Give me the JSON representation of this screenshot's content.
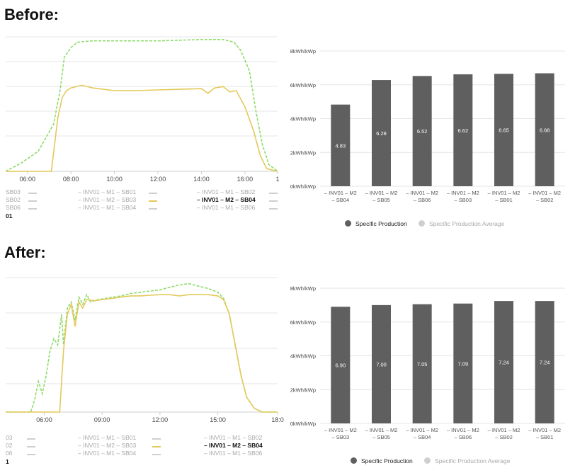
{
  "panels": [
    {
      "heading": "Before:",
      "line_chart": {
        "x_ticks": [
          "06:00",
          "08:00",
          "10:00",
          "12:00",
          "14:00",
          "16:00",
          "1"
        ],
        "series_green": [
          [
            5.0,
            0
          ],
          [
            5.7,
            6
          ],
          [
            6.5,
            15
          ],
          [
            7.2,
            35
          ],
          [
            7.5,
            60
          ],
          [
            7.7,
            85
          ],
          [
            8.0,
            92
          ],
          [
            8.3,
            96
          ],
          [
            9.0,
            97
          ],
          [
            10.0,
            97
          ],
          [
            11.0,
            97
          ],
          [
            12.0,
            97
          ],
          [
            13.0,
            97.5
          ],
          [
            14.0,
            98
          ],
          [
            15.0,
            98
          ],
          [
            15.5,
            96
          ],
          [
            15.8,
            90
          ],
          [
            16.2,
            75
          ],
          [
            16.5,
            45
          ],
          [
            16.8,
            20
          ],
          [
            17.1,
            5
          ],
          [
            17.5,
            0
          ]
        ],
        "series_yellow": [
          [
            5.0,
            0
          ],
          [
            7.1,
            0
          ],
          [
            7.4,
            40
          ],
          [
            7.6,
            55
          ],
          [
            7.8,
            60
          ],
          [
            8.0,
            62
          ],
          [
            8.5,
            64
          ],
          [
            9.0,
            62
          ],
          [
            10.0,
            60
          ],
          [
            11.0,
            60
          ],
          [
            12.0,
            60.5
          ],
          [
            13.0,
            61
          ],
          [
            14.0,
            61.5
          ],
          [
            14.3,
            58
          ],
          [
            14.6,
            62
          ],
          [
            15.0,
            63
          ],
          [
            15.3,
            59
          ],
          [
            15.6,
            60
          ],
          [
            16.0,
            48
          ],
          [
            16.4,
            30
          ],
          [
            16.7,
            12
          ],
          [
            17.0,
            2
          ],
          [
            17.5,
            0
          ]
        ],
        "legend": [
          {
            "col1": "SB03",
            "col2": "– INV01 – M1 – SB01",
            "col3": "– INV01 – M1 – SB02"
          },
          {
            "col1": "SB02",
            "col2": "– INV01 – M2 – SB03",
            "col3": "– INV01 – M2 – SB04"
          },
          {
            "col1": "SB06",
            "col2": "– INV01 – M1 – SB04",
            "col3": "– INV01 – M1 – SB06"
          }
        ],
        "legend_extra": "01"
      },
      "bar_chart": {
        "y_ticks": [
          "0kWh/kWp",
          "2kWh/kWp",
          "4kWh/kWp",
          "6kWh/kWp",
          "8kWh/kWp"
        ],
        "categories": [
          [
            "– INV01 – M2",
            "– SB04"
          ],
          [
            "– INV01 – M2",
            "– SB05"
          ],
          [
            "– INV01 – M2",
            "– SB06"
          ],
          [
            "– INV01 – M2",
            "– SB03"
          ],
          [
            "– INV01 – M2",
            "– SB01"
          ],
          [
            "– INV01 – M2",
            "– SB02"
          ]
        ],
        "values": [
          4.83,
          6.28,
          6.52,
          6.62,
          6.65,
          6.68
        ],
        "labels": [
          "4.83",
          "6.28",
          "6.52",
          "6.62",
          "6.65",
          "6.68"
        ],
        "ylim": [
          0,
          8
        ],
        "legend_main": "Specific Production",
        "legend_avg": "Specific Production Average"
      }
    },
    {
      "heading": "After:",
      "line_chart": {
        "x_ticks": [
          "06:00",
          "09:00",
          "12:00",
          "15:00",
          "18:0"
        ],
        "series_green": [
          [
            4.0,
            0
          ],
          [
            5.3,
            0
          ],
          [
            5.5,
            10
          ],
          [
            5.7,
            25
          ],
          [
            5.9,
            15
          ],
          [
            6.1,
            30
          ],
          [
            6.3,
            50
          ],
          [
            6.5,
            60
          ],
          [
            6.7,
            55
          ],
          [
            6.9,
            80
          ],
          [
            7.0,
            55
          ],
          [
            7.2,
            85
          ],
          [
            7.4,
            90
          ],
          [
            7.6,
            75
          ],
          [
            7.8,
            94
          ],
          [
            8.0,
            88
          ],
          [
            8.2,
            96
          ],
          [
            8.4,
            90
          ],
          [
            8.8,
            92
          ],
          [
            9.2,
            93
          ],
          [
            9.6,
            94
          ],
          [
            10.0,
            95
          ],
          [
            10.5,
            97
          ],
          [
            11.0,
            98
          ],
          [
            11.5,
            99
          ],
          [
            12.0,
            100
          ],
          [
            12.5,
            102
          ],
          [
            13.0,
            104
          ],
          [
            13.5,
            105
          ],
          [
            14.0,
            103
          ],
          [
            14.5,
            101
          ],
          [
            15.0,
            98
          ],
          [
            15.3,
            93
          ],
          [
            15.6,
            80
          ],
          [
            15.9,
            55
          ],
          [
            16.2,
            30
          ],
          [
            16.5,
            12
          ],
          [
            16.9,
            3
          ],
          [
            17.3,
            0
          ],
          [
            18.1,
            0
          ]
        ],
        "series_yellow": [
          [
            4.0,
            0
          ],
          [
            6.8,
            0
          ],
          [
            7.0,
            50
          ],
          [
            7.2,
            80
          ],
          [
            7.4,
            88
          ],
          [
            7.6,
            70
          ],
          [
            7.8,
            90
          ],
          [
            8.0,
            85
          ],
          [
            8.2,
            92
          ],
          [
            8.6,
            91
          ],
          [
            9.0,
            92
          ],
          [
            9.5,
            93
          ],
          [
            10.0,
            94
          ],
          [
            10.5,
            95
          ],
          [
            11.0,
            95
          ],
          [
            11.5,
            95.5
          ],
          [
            12.0,
            96
          ],
          [
            12.5,
            96
          ],
          [
            13.0,
            95
          ],
          [
            13.5,
            96
          ],
          [
            14.0,
            96
          ],
          [
            14.5,
            96
          ],
          [
            15.0,
            95
          ],
          [
            15.3,
            92
          ],
          [
            15.6,
            80
          ],
          [
            15.9,
            55
          ],
          [
            16.2,
            30
          ],
          [
            16.5,
            12
          ],
          [
            16.9,
            3
          ],
          [
            17.3,
            0
          ],
          [
            18.1,
            0
          ]
        ],
        "legend": [
          {
            "col1": "03",
            "col2": "– INV01 – M1 – SB01",
            "col3": "– INV01 – M1 – SB02"
          },
          {
            "col1": "02",
            "col2": "– INV01 – M2 – SB03",
            "col3": "– INV01 – M2 – SB04"
          },
          {
            "col1": "06",
            "col2": "– INV01 – M1 – SB04",
            "col3": "– INV01 – M1 – SB06"
          }
        ],
        "legend_extra": "1"
      },
      "bar_chart": {
        "y_ticks": [
          "0kWh/kWp",
          "2kWh/kWp",
          "4kWh/kWp",
          "6kWh/kWp",
          "8kWh/kWp"
        ],
        "categories": [
          [
            "– INV01 – M2",
            "– SB03"
          ],
          [
            "– INV01 – M2",
            "– SB05"
          ],
          [
            "– INV01 – M2",
            "– SB04"
          ],
          [
            "– INV01 – M2",
            "– SB06"
          ],
          [
            "– INV01 – M2",
            "– SB02"
          ],
          [
            "– INV01 – M2",
            "– SB01"
          ]
        ],
        "values": [
          6.9,
          7.0,
          7.05,
          7.09,
          7.24,
          7.24
        ],
        "labels": [
          "6.90",
          "7.00",
          "7.05",
          "7.09",
          "7.24",
          "7.24"
        ],
        "ylim": [
          0,
          8
        ],
        "legend_main": "Specific Production",
        "legend_avg": "Specific Production Average"
      }
    }
  ],
  "chart_data": [
    {
      "type": "line",
      "x": [
        "06:00",
        "08:00",
        "10:00",
        "12:00",
        "14:00",
        "16:00"
      ],
      "series": [
        {
          "values": [
            2,
            92,
            97,
            97,
            98,
            60
          ]
        },
        {
          "values": [
            0,
            62,
            60,
            60.5,
            61.5,
            48
          ]
        }
      ]
    },
    {
      "type": "bar",
      "categories": [
        "– INV01 – M2 – SB04",
        "– INV01 – M2 – SB05",
        "– INV01 – M2 – SB06",
        "– INV01 – M2 – SB03",
        "– INV01 – M2 – SB01",
        "– INV01 – M2 – SB02"
      ],
      "values": [
        4.83,
        6.28,
        6.52,
        6.62,
        6.65,
        6.68
      ],
      "ylim": [
        0,
        8
      ],
      "series": [
        {
          "name": "Specific Production",
          "values": [
            4.83,
            6.28,
            6.52,
            6.62,
            6.65,
            6.68
          ]
        }
      ]
    },
    {
      "type": "line",
      "x": [
        "06:00",
        "09:00",
        "12:00",
        "15:00"
      ],
      "series": [
        {
          "values": [
            30,
            93,
            100,
            98
          ]
        },
        {
          "values": [
            0,
            92,
            96,
            95
          ]
        }
      ]
    },
    {
      "type": "bar",
      "categories": [
        "– INV01 – M2 – SB03",
        "– INV01 – M2 – SB05",
        "– INV01 – M2 – SB04",
        "– INV01 – M2 – SB06",
        "– INV01 – M2 – SB02",
        "– INV01 – M2 – SB01"
      ],
      "values": [
        6.9,
        7.0,
        7.05,
        7.09,
        7.24,
        7.24
      ],
      "ylim": [
        0,
        8
      ],
      "series": [
        {
          "name": "Specific Production",
          "values": [
            6.9,
            7.0,
            7.05,
            7.09,
            7.24,
            7.24
          ]
        }
      ]
    }
  ],
  "colors": {
    "green": "#8edc6a",
    "yellow": "#e3c95a",
    "bar": "#5f5f5f",
    "grid": "#e6e6e6",
    "axis": "#cccccc",
    "dim": "#a8a8a8"
  }
}
